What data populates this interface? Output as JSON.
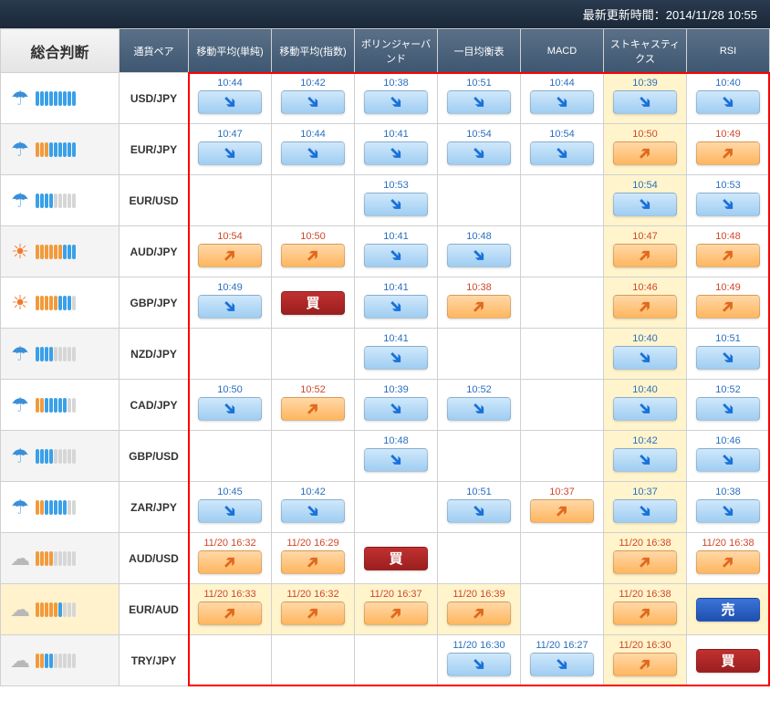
{
  "header": {
    "text": "最新更新時間：2014/11/28 10:55"
  },
  "corner": "総合判断",
  "columns": [
    "通貨ペア",
    "移動平均(単純)",
    "移動平均(指数)",
    "ボリンジャーバンド",
    "一目均衡表",
    "MACD",
    "ストキャスティクス",
    "RSI"
  ],
  "rows": [
    {
      "pair": "USD/JPY",
      "judge": {
        "icon": "umbrella",
        "blue": 9,
        "orange": 0,
        "gray": 0
      },
      "cells": [
        {
          "t": "10:44",
          "dir": "down",
          "tc": "blue",
          "bg": "orange"
        },
        {
          "t": "10:42",
          "dir": "down",
          "tc": "blue"
        },
        {
          "t": "10:38",
          "dir": "down",
          "tc": "blue"
        },
        {
          "t": "10:51",
          "dir": "down",
          "tc": "blue"
        },
        {
          "t": "10:44",
          "dir": "down",
          "tc": "blue"
        },
        {
          "t": "10:39",
          "dir": "down",
          "tc": "blue",
          "hl": true
        },
        {
          "t": "10:40",
          "dir": "down",
          "tc": "blue"
        }
      ]
    },
    {
      "pair": "EUR/JPY",
      "judge": {
        "icon": "umbrella",
        "blue": 6,
        "orange": 3,
        "gray": 0,
        "alt": true
      },
      "cells": [
        {
          "t": "10:47",
          "dir": "down",
          "tc": "blue"
        },
        {
          "t": "10:44",
          "dir": "down",
          "tc": "blue"
        },
        {
          "t": "10:41",
          "dir": "down",
          "tc": "blue"
        },
        {
          "t": "10:54",
          "dir": "down",
          "tc": "blue"
        },
        {
          "t": "10:54",
          "dir": "down",
          "tc": "blue"
        },
        {
          "t": "10:50",
          "dir": "up",
          "tc": "red",
          "hl": true
        },
        {
          "t": "10:49",
          "dir": "up",
          "tc": "red"
        }
      ]
    },
    {
      "pair": "EUR/USD",
      "judge": {
        "icon": "umbrella",
        "blue": 4,
        "orange": 0,
        "gray": 5
      },
      "cells": [
        null,
        null,
        {
          "t": "10:53",
          "dir": "down",
          "tc": "blue"
        },
        null,
        null,
        {
          "t": "10:54",
          "dir": "down",
          "tc": "blue",
          "hl": true
        },
        {
          "t": "10:53",
          "dir": "down",
          "tc": "blue"
        }
      ]
    },
    {
      "pair": "AUD/JPY",
      "judge": {
        "icon": "sun",
        "blue": 3,
        "orange": 6,
        "gray": 0,
        "alt": true
      },
      "cells": [
        {
          "t": "10:54",
          "dir": "up",
          "tc": "red"
        },
        {
          "t": "10:50",
          "dir": "up",
          "tc": "red"
        },
        {
          "t": "10:41",
          "dir": "down",
          "tc": "blue"
        },
        {
          "t": "10:48",
          "dir": "down",
          "tc": "blue"
        },
        null,
        {
          "t": "10:47",
          "dir": "up",
          "tc": "red",
          "hl": true
        },
        {
          "t": "10:48",
          "dir": "up",
          "tc": "red"
        }
      ]
    },
    {
      "pair": "GBP/JPY",
      "judge": {
        "icon": "sun",
        "blue": 3,
        "orange": 5,
        "gray": 1
      },
      "cells": [
        {
          "t": "10:49",
          "dir": "down",
          "tc": "blue"
        },
        {
          "label": "買",
          "style": "darkred"
        },
        {
          "t": "10:41",
          "dir": "down",
          "tc": "blue"
        },
        {
          "t": "10:38",
          "dir": "up",
          "tc": "red"
        },
        null,
        {
          "t": "10:46",
          "dir": "up",
          "tc": "red",
          "hl": true
        },
        {
          "t": "10:49",
          "dir": "up",
          "tc": "red"
        }
      ]
    },
    {
      "pair": "NZD/JPY",
      "judge": {
        "icon": "umbrella",
        "blue": 4,
        "orange": 0,
        "gray": 5,
        "alt": true
      },
      "cells": [
        null,
        null,
        {
          "t": "10:41",
          "dir": "down",
          "tc": "blue"
        },
        null,
        null,
        {
          "t": "10:40",
          "dir": "down",
          "tc": "blue",
          "hl": true
        },
        {
          "t": "10:51",
          "dir": "down",
          "tc": "blue"
        }
      ]
    },
    {
      "pair": "CAD/JPY",
      "judge": {
        "icon": "umbrella",
        "blue": 5,
        "orange": 2,
        "gray": 2
      },
      "cells": [
        {
          "t": "10:50",
          "dir": "down",
          "tc": "blue"
        },
        {
          "t": "10:52",
          "dir": "up",
          "tc": "red"
        },
        {
          "t": "10:39",
          "dir": "down",
          "tc": "blue"
        },
        {
          "t": "10:52",
          "dir": "down",
          "tc": "blue"
        },
        null,
        {
          "t": "10:40",
          "dir": "down",
          "tc": "blue",
          "hl": true
        },
        {
          "t": "10:52",
          "dir": "down",
          "tc": "blue"
        }
      ]
    },
    {
      "pair": "GBP/USD",
      "judge": {
        "icon": "umbrella",
        "blue": 4,
        "orange": 0,
        "gray": 5,
        "alt": true
      },
      "cells": [
        null,
        null,
        {
          "t": "10:48",
          "dir": "down",
          "tc": "blue"
        },
        null,
        null,
        {
          "t": "10:42",
          "dir": "down",
          "tc": "blue",
          "hl": true
        },
        {
          "t": "10:46",
          "dir": "down",
          "tc": "blue"
        }
      ]
    },
    {
      "pair": "ZAR/JPY",
      "judge": {
        "icon": "umbrella",
        "blue": 5,
        "orange": 2,
        "gray": 2
      },
      "cells": [
        {
          "t": "10:45",
          "dir": "down",
          "tc": "blue"
        },
        {
          "t": "10:42",
          "dir": "down",
          "tc": "blue"
        },
        null,
        {
          "t": "10:51",
          "dir": "down",
          "tc": "blue"
        },
        {
          "t": "10:37",
          "dir": "up",
          "tc": "red"
        },
        {
          "t": "10:37",
          "dir": "down",
          "tc": "blue",
          "hl": true
        },
        {
          "t": "10:38",
          "dir": "down",
          "tc": "blue"
        }
      ]
    },
    {
      "pair": "AUD/USD",
      "judge": {
        "icon": "cloud",
        "blue": 0,
        "orange": 4,
        "gray": 5,
        "alt": true
      },
      "cells": [
        {
          "t": "11/20 16:32",
          "dir": "up",
          "tc": "red"
        },
        {
          "t": "11/20 16:29",
          "dir": "up",
          "tc": "red"
        },
        {
          "label": "買",
          "style": "darkred"
        },
        null,
        null,
        {
          "t": "11/20 16:38",
          "dir": "up",
          "tc": "red",
          "hl": true
        },
        {
          "t": "11/20 16:38",
          "dir": "up",
          "tc": "red"
        }
      ]
    },
    {
      "pair": "EUR/AUD",
      "judge": {
        "icon": "cloud",
        "blue": 1,
        "orange": 5,
        "gray": 3,
        "hl": true
      },
      "cells": [
        {
          "t": "11/20 16:33",
          "dir": "up",
          "tc": "red",
          "hl": true
        },
        {
          "t": "11/20 16:32",
          "dir": "up",
          "tc": "red",
          "hl": true
        },
        {
          "t": "11/20 16:37",
          "dir": "up",
          "tc": "red",
          "hl": true
        },
        {
          "t": "11/20 16:39",
          "dir": "up",
          "tc": "red",
          "hl": true
        },
        null,
        {
          "t": "11/20 16:38",
          "dir": "up",
          "tc": "red",
          "hl": true
        },
        {
          "label": "売",
          "style": "darkblue",
          "hl": true
        }
      ]
    },
    {
      "pair": "TRY/JPY",
      "judge": {
        "icon": "cloud",
        "blue": 2,
        "orange": 2,
        "gray": 5,
        "alt": true
      },
      "cells": [
        null,
        null,
        null,
        {
          "t": "11/20 16:30",
          "dir": "down",
          "tc": "blue"
        },
        {
          "t": "11/20 16:27",
          "dir": "down",
          "tc": "blue"
        },
        {
          "t": "11/20 16:30",
          "dir": "up",
          "tc": "red",
          "hl": true
        },
        {
          "label": "買",
          "style": "darkred"
        }
      ]
    }
  ],
  "icons": {
    "umbrella": "☂",
    "sun": "☀",
    "cloud": "☁"
  },
  "iconColors": {
    "umbrella": "#3a8fd8",
    "sun": "#f07b2e",
    "cloud": "#b8b8b8"
  }
}
